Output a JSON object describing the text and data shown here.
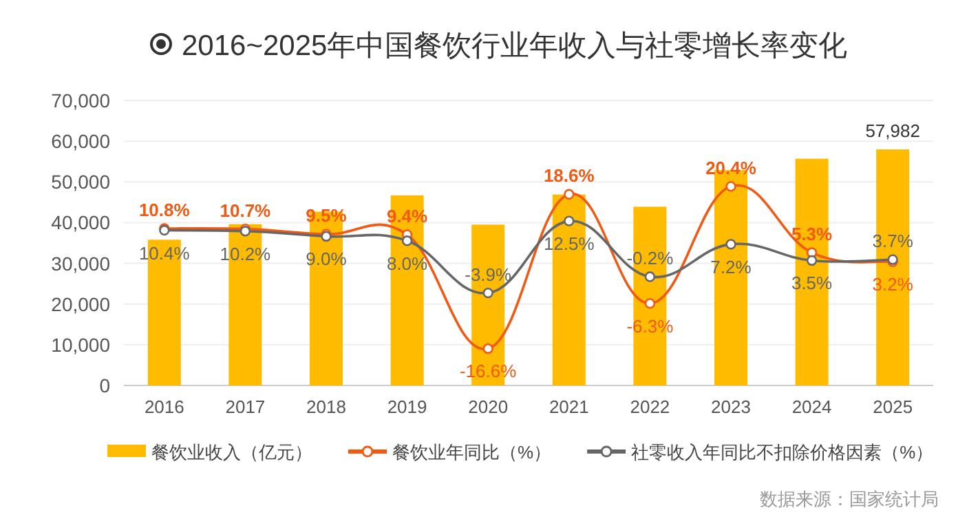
{
  "chart_data": {
    "type": "bar",
    "title": "2016~2025年中国餐饮行业年收入与社零增长率变化",
    "categories": [
      "2016",
      "2017",
      "2018",
      "2019",
      "2020",
      "2021",
      "2022",
      "2023",
      "2024",
      "2025"
    ],
    "series": [
      {
        "name": "餐饮业收入（亿元）",
        "color": "#ffbb00",
        "values": [
          35800,
          39600,
          42700,
          46700,
          39500,
          46900,
          43900,
          52900,
          55700,
          57982
        ],
        "value_labels": [
          null,
          null,
          null,
          null,
          null,
          null,
          null,
          null,
          null,
          "57,982"
        ]
      },
      {
        "name": "餐饮业年同比（%）",
        "type": "line",
        "axis": "y2",
        "color": "#f05a14",
        "values": [
          10.8,
          10.7,
          9.5,
          9.4,
          -16.6,
          18.6,
          -6.3,
          20.4,
          5.3,
          3.2
        ],
        "value_labels": [
          "10.8%",
          "10.7%",
          "9.5%",
          "9.4%",
          "-16.6%",
          "18.6%",
          "-6.3%",
          "20.4%",
          "5.3%",
          "3.2%"
        ]
      },
      {
        "name": "社零收入年同比不扣除价格因素（%）",
        "type": "line",
        "axis": "y2",
        "color": "#666666",
        "values": [
          10.4,
          10.2,
          9.0,
          8.0,
          -3.9,
          12.5,
          -0.2,
          7.2,
          3.5,
          3.7
        ],
        "value_labels": [
          "10.4%",
          "10.2%",
          "9.0%",
          "8.0%",
          "-3.9%",
          "12.5%",
          "-0.2%",
          "7.2%",
          "3.5%",
          "3.7%"
        ]
      }
    ],
    "ylim": [
      0,
      70000
    ],
    "yticks": [
      0,
      {
        "value": 10000,
        "label": "10,000"
      },
      {
        "value": 20000,
        "label": "20,000"
      },
      {
        "value": 30000,
        "label": "30,000"
      },
      {
        "value": 40000,
        "label": "40,000"
      },
      {
        "value": 50000,
        "label": "50,000"
      },
      {
        "value": 60000,
        "label": "60,000"
      },
      {
        "value": 70000,
        "label": "70,000"
      }
    ],
    "y2lim": [
      -25,
      40
    ],
    "grid": "y",
    "legend": "bottom",
    "marker": "circle",
    "line_style": "solid",
    "annotations": [
      "数据来源：国家统计局"
    ]
  }
}
